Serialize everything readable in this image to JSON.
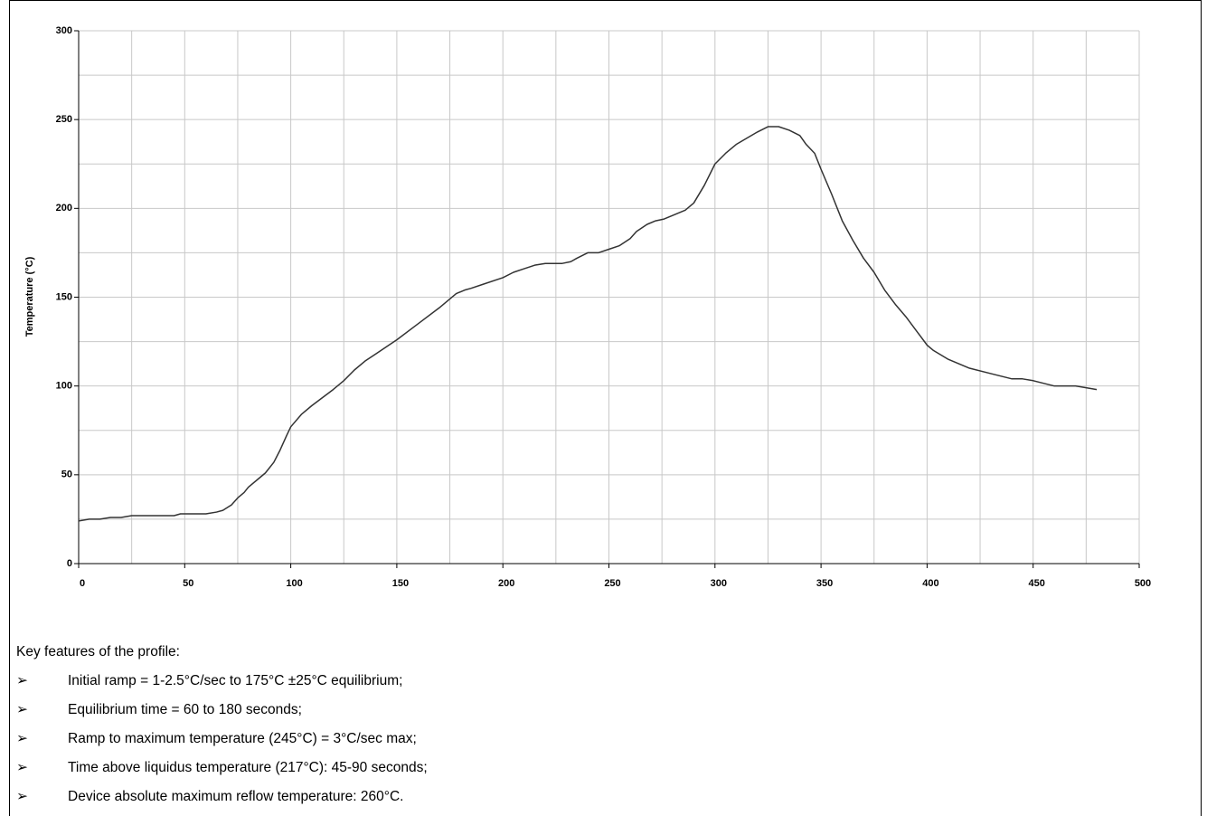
{
  "chart_data": {
    "type": "line",
    "ylabel": "Temperature (°C)",
    "x": [
      0,
      5,
      10,
      15,
      20,
      25,
      30,
      40,
      45,
      48,
      55,
      60,
      65,
      68,
      72,
      75,
      78,
      80,
      85,
      88,
      92,
      95,
      98,
      100,
      105,
      110,
      120,
      125,
      130,
      135,
      140,
      150,
      160,
      170,
      178,
      182,
      185,
      190,
      200,
      205,
      210,
      215,
      220,
      228,
      232,
      235,
      240,
      245,
      250,
      255,
      260,
      263,
      268,
      272,
      276,
      280,
      286,
      290,
      295,
      300,
      305,
      310,
      320,
      325,
      330,
      335,
      340,
      343,
      347,
      350,
      355,
      360,
      365,
      370,
      375,
      380,
      385,
      390,
      395,
      400,
      403,
      410,
      420,
      430,
      440,
      445,
      450,
      460,
      470,
      475,
      480
    ],
    "values": [
      24,
      25,
      25,
      26,
      26,
      27,
      27,
      27,
      27,
      28,
      28,
      28,
      29,
      30,
      33,
      37,
      40,
      43,
      48,
      51,
      57,
      64,
      72,
      77,
      84,
      89,
      98,
      103,
      109,
      114,
      118,
      126,
      135,
      144,
      152,
      154,
      155,
      157,
      161,
      164,
      166,
      168,
      169,
      169,
      170,
      172,
      175,
      175,
      177,
      179,
      183,
      187,
      191,
      193,
      194,
      196,
      199,
      203,
      213,
      225,
      231,
      236,
      243,
      246,
      246,
      244,
      241,
      236,
      231,
      222,
      208,
      193,
      182,
      172,
      164,
      154,
      146,
      139,
      131,
      123,
      120,
      115,
      110,
      107,
      104,
      104,
      103,
      100,
      100,
      99,
      98
    ],
    "color": "#333333",
    "xlim": [
      0,
      500
    ],
    "xticks": [
      0,
      50,
      100,
      150,
      200,
      250,
      300,
      350,
      400,
      450,
      500
    ],
    "x_minor_ticks": [
      25,
      75,
      125,
      175,
      225,
      275,
      325,
      375,
      425,
      475
    ],
    "ylim": [
      0,
      300
    ],
    "yticks": [
      0,
      50,
      100,
      150,
      200,
      250,
      300
    ],
    "y_minor_ticks": [
      25,
      75,
      125,
      175,
      225,
      275
    ],
    "grid": true
  },
  "notes": {
    "heading": "Key features of the profile:",
    "items": [
      "Initial ramp = 1-2.5°C/sec to 175°C ±25°C equilibrium;",
      "Equilibrium time = 60 to 180 seconds;",
      "Ramp to maximum temperature (245°C) = 3°C/sec max;",
      "Time above liquidus temperature (217°C): 45-90 seconds;",
      "Device absolute maximum reflow temperature: 260°C."
    ]
  }
}
